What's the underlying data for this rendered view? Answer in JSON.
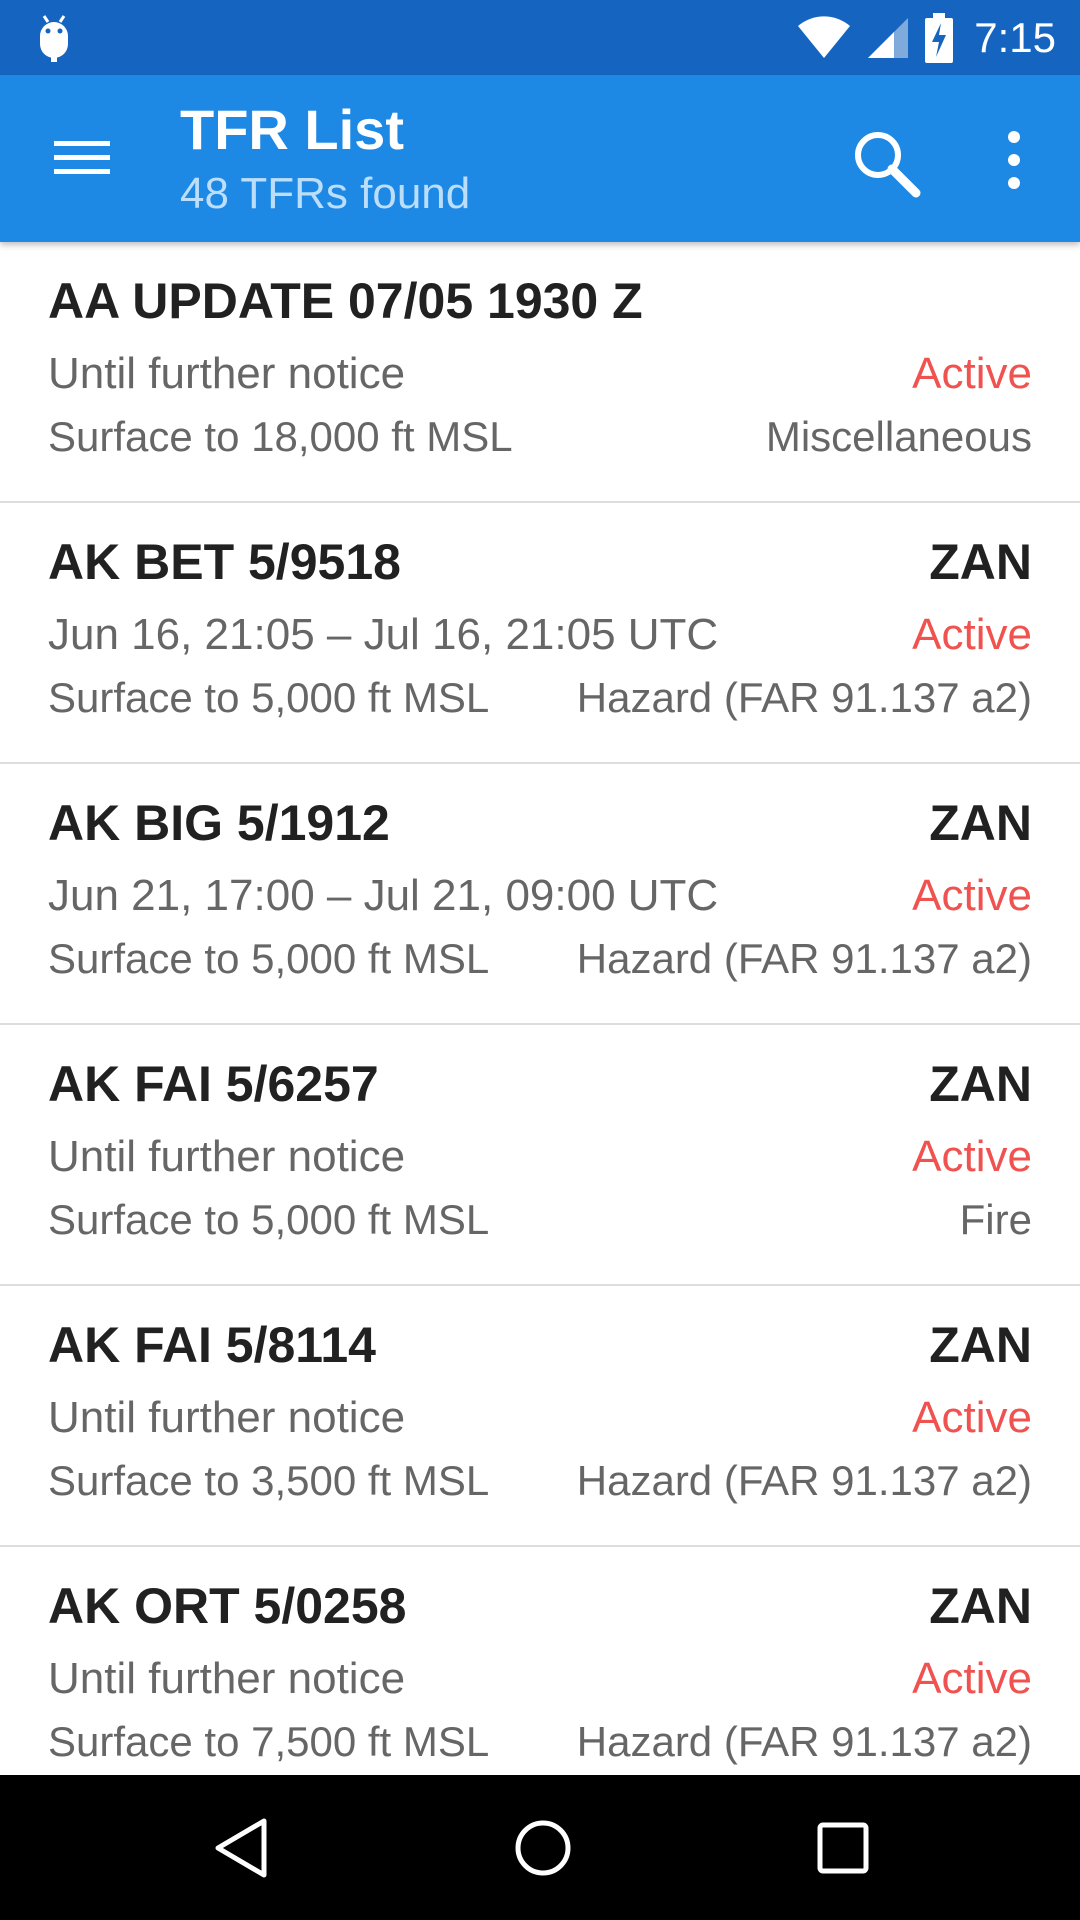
{
  "status_bar": {
    "time": "7:15",
    "icons": [
      "android-debug-icon",
      "wifi-icon",
      "cell-signal-icon",
      "battery-charging-icon"
    ]
  },
  "app_bar": {
    "title": "TFR List",
    "subtitle": "48 TFRs found",
    "icons": [
      "menu-icon",
      "search-icon",
      "more-vert-icon"
    ]
  },
  "tfrs": [
    {
      "name": "AA UPDATE 07/05 1930 Z",
      "facility": "",
      "time": "Until further notice",
      "status": "Active",
      "altitude": "Surface to 18,000 ft MSL",
      "type": "Miscellaneous"
    },
    {
      "name": "AK BET 5/9518",
      "facility": "ZAN",
      "time": "Jun 16, 21:05 – Jul 16, 21:05 UTC",
      "status": "Active",
      "altitude": "Surface to 5,000 ft MSL",
      "type": "Hazard (FAR 91.137 a2)"
    },
    {
      "name": "AK BIG 5/1912",
      "facility": "ZAN",
      "time": "Jun 21, 17:00 – Jul 21, 09:00 UTC",
      "status": "Active",
      "altitude": "Surface to 5,000 ft MSL",
      "type": "Hazard (FAR 91.137 a2)"
    },
    {
      "name": "AK FAI 5/6257",
      "facility": "ZAN",
      "time": "Until further notice",
      "status": "Active",
      "altitude": "Surface to 5,000 ft MSL",
      "type": "Fire"
    },
    {
      "name": "AK FAI 5/8114",
      "facility": "ZAN",
      "time": "Until further notice",
      "status": "Active",
      "altitude": "Surface to 3,500 ft MSL",
      "type": "Hazard (FAR 91.137 a2)"
    },
    {
      "name": "AK ORT 5/0258",
      "facility": "ZAN",
      "time": "Until further notice",
      "status": "Active",
      "altitude": "Surface to 7,500 ft MSL",
      "type": "Hazard (FAR 91.137 a2)"
    }
  ],
  "nav_bar": {
    "icons": [
      "back-icon",
      "home-icon",
      "recents-icon"
    ]
  },
  "colors": {
    "status_bar": "#1565c0",
    "app_bar": "#1e88e5",
    "active_status": "#f0524f",
    "primary_text": "#212121",
    "secondary_text": "#666666"
  }
}
